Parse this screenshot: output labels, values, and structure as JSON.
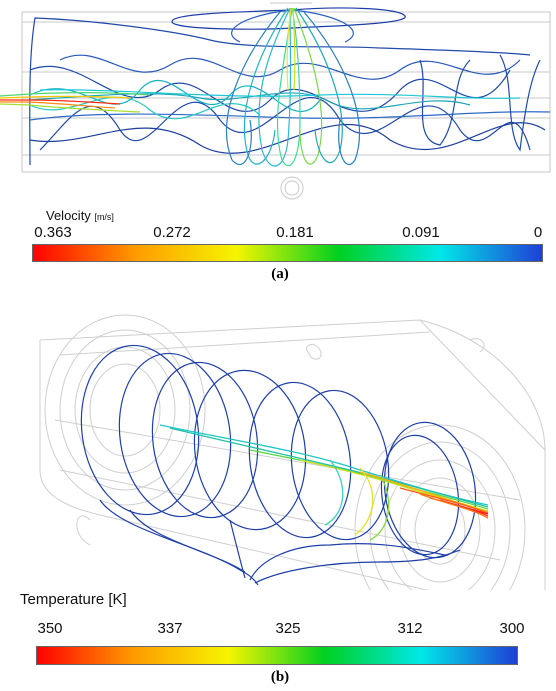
{
  "panel_a": {
    "legend_title": "Velocity",
    "legend_unit": "[m/s]",
    "ticks": [
      "0.363",
      "0.272",
      "0.181",
      "0.091",
      "0"
    ],
    "caption": "(a)"
  },
  "panel_b": {
    "legend_title": "Temperature [K]",
    "ticks": [
      "350",
      "337",
      "325",
      "312",
      "300"
    ],
    "caption": "(b)"
  },
  "colormap": [
    "#ff0000",
    "#ff9a00",
    "#f5f500",
    "#00d020",
    "#00e8e8",
    "#1f3fd6"
  ]
}
